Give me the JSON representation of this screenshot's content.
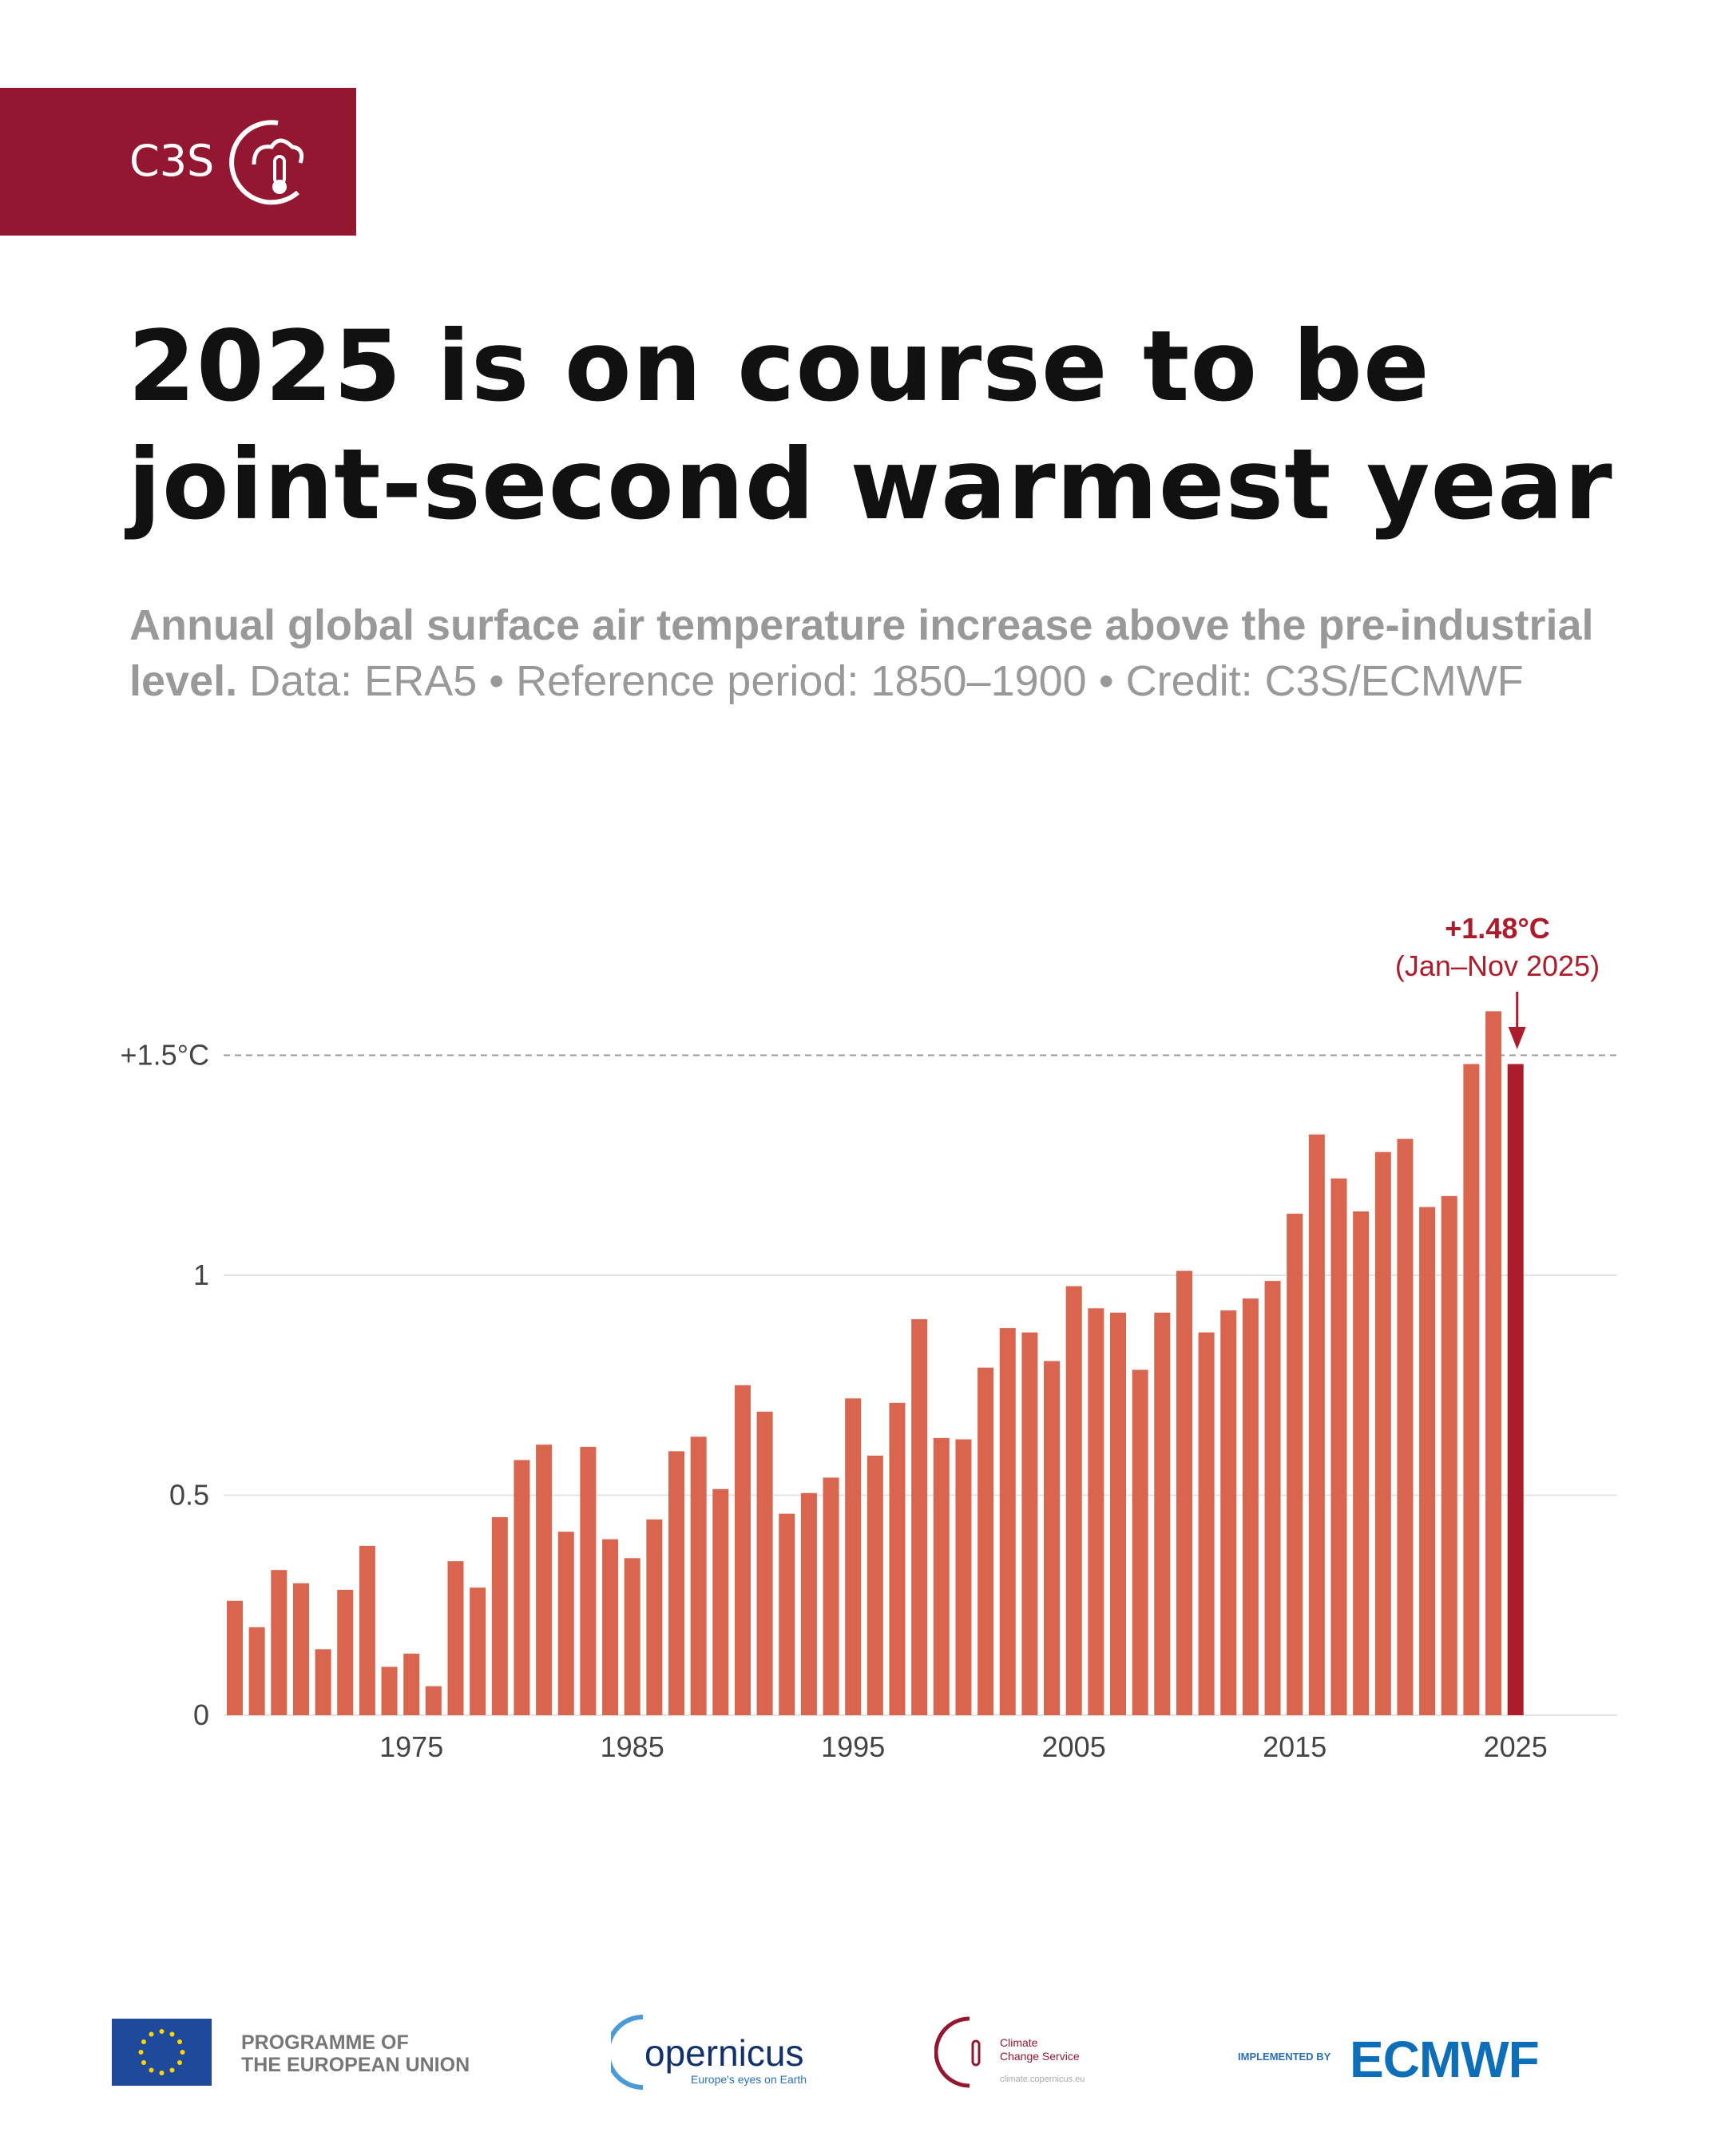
{
  "header": {
    "brand": "C3S"
  },
  "title": {
    "line1": "2025 is on course to be",
    "line2": "joint-second warmest year"
  },
  "subtitle": {
    "bold": "Annual global surface air temperature increase above the pre-industrial level.",
    "rest": " Data: ERA5 • Reference period: 1850–1900 • Credit: C3S/ECMWF"
  },
  "chart_data": {
    "type": "bar",
    "title": "Annual global surface air temperature increase above the pre-industrial level",
    "xlabel": "",
    "ylabel": "°C",
    "ylim": [
      0,
      1.7
    ],
    "grid": true,
    "y_ticks": [
      {
        "v": 0,
        "label": "0"
      },
      {
        "v": 0.5,
        "label": "0.5"
      },
      {
        "v": 1,
        "label": "1"
      }
    ],
    "threshold": {
      "v": 1.5,
      "label": "+1.5°C"
    },
    "x_ticks": [
      1975,
      1985,
      1995,
      2005,
      2015,
      2025
    ],
    "x": [
      1967,
      1968,
      1969,
      1970,
      1971,
      1972,
      1973,
      1974,
      1975,
      1976,
      1977,
      1978,
      1979,
      1980,
      1981,
      1982,
      1983,
      1984,
      1985,
      1986,
      1987,
      1988,
      1989,
      1990,
      1991,
      1992,
      1993,
      1994,
      1995,
      1996,
      1997,
      1998,
      1999,
      2000,
      2001,
      2002,
      2003,
      2004,
      2005,
      2006,
      2007,
      2008,
      2009,
      2010,
      2011,
      2012,
      2013,
      2014,
      2015,
      2016,
      2017,
      2018,
      2019,
      2020,
      2021,
      2022,
      2023,
      2024,
      2025
    ],
    "values": [
      0.26,
      0.2,
      0.33,
      0.3,
      0.15,
      0.285,
      0.385,
      0.11,
      0.14,
      0.066,
      0.35,
      0.29,
      0.45,
      0.58,
      0.615,
      0.417,
      0.61,
      0.4,
      0.357,
      0.445,
      0.6,
      0.633,
      0.514,
      0.75,
      0.69,
      0.458,
      0.505,
      0.54,
      0.72,
      0.59,
      0.71,
      0.9,
      0.63,
      0.627,
      0.79,
      0.88,
      0.87,
      0.805,
      0.975,
      0.925,
      0.915,
      0.785,
      0.915,
      1.01,
      0.87,
      0.92,
      0.947,
      0.987,
      1.14,
      1.32,
      1.22,
      1.145,
      1.28,
      1.31,
      1.155,
      1.18,
      1.48,
      1.6,
      1.48
    ],
    "highlight": {
      "year": 2025,
      "label": "+1.48°C",
      "sublabel": "(Jan–Nov 2025)"
    },
    "colors": {
      "bar": "#d9654e",
      "highlight": "#ad1c2a",
      "annotation": "#ad1c2a"
    }
  },
  "footer": {
    "eu": "PROGRAMME OF THE EUROPEAN UNION",
    "eu_l1": "PROGRAMME OF",
    "eu_l2": "THE EUROPEAN UNION",
    "copernicus": "opernicus",
    "copernicus_tag": "Europe's eyes on Earth",
    "c3s_l1": "Climate",
    "c3s_l2": "Change Service",
    "c3s_url": "climate.copernicus.eu",
    "implemented_by": "IMPLEMENTED BY",
    "ecmwf": "ECMWF"
  }
}
